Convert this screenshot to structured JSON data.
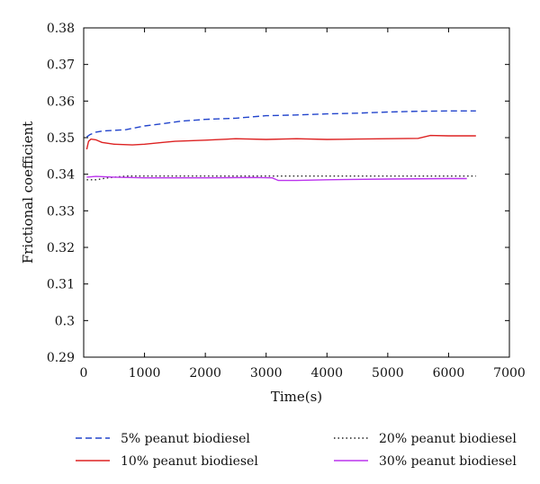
{
  "chart_data": {
    "type": "line",
    "title": "",
    "xlabel": "Time(s)",
    "ylabel": "Frictional coefficient",
    "xlim": [
      0,
      7000
    ],
    "ylim": [
      0.29,
      0.38
    ],
    "xticks": [
      0,
      1000,
      2000,
      3000,
      4000,
      5000,
      6000,
      7000
    ],
    "yticks": [
      0.29,
      0.3,
      0.31,
      0.32,
      0.33,
      0.34,
      0.35,
      0.36,
      0.37,
      0.38
    ],
    "ytick_labels": [
      "0.29",
      "0.3",
      "0.31",
      "0.32",
      "0.33",
      "0.34",
      "0.35",
      "0.36",
      "0.37",
      "0.38"
    ],
    "grid": false,
    "legend_position": "bottom",
    "series": [
      {
        "name": "5% peanut biodiesel",
        "color": "#2244cc",
        "dash": "dashed",
        "x": [
          50,
          100,
          200,
          300,
          500,
          700,
          1000,
          1300,
          1600,
          2000,
          2500,
          3000,
          3500,
          4000,
          4500,
          5000,
          5500,
          6000,
          6450
        ],
        "y": [
          0.3502,
          0.3508,
          0.3515,
          0.3518,
          0.352,
          0.3522,
          0.3532,
          0.3538,
          0.3545,
          0.355,
          0.3553,
          0.356,
          0.3562,
          0.3565,
          0.3567,
          0.357,
          0.3572,
          0.3573,
          0.3573
        ]
      },
      {
        "name": "10% peanut biodiesel",
        "color": "#dd2222",
        "dash": "solid",
        "x": [
          50,
          80,
          120,
          200,
          300,
          500,
          800,
          1000,
          1300,
          1500,
          2000,
          2500,
          3000,
          3500,
          4000,
          4500,
          5000,
          5500,
          5700,
          6000,
          6450
        ],
        "y": [
          0.3468,
          0.349,
          0.3496,
          0.3494,
          0.3487,
          0.3482,
          0.348,
          0.3482,
          0.3487,
          0.349,
          0.3493,
          0.3497,
          0.3495,
          0.3497,
          0.3495,
          0.3496,
          0.3497,
          0.3498,
          0.3506,
          0.3505,
          0.3505
        ]
      },
      {
        "name": "20% peanut biodiesel",
        "color": "#222222",
        "dash": "dotted",
        "x": [
          50,
          200,
          400,
          700,
          1000,
          2000,
          3000,
          4000,
          5000,
          6000,
          6450
        ],
        "y": [
          0.3385,
          0.3385,
          0.339,
          0.3395,
          0.3395,
          0.3395,
          0.3395,
          0.3395,
          0.3395,
          0.3395,
          0.3395
        ]
      },
      {
        "name": "30% peanut biodiesel",
        "color": "#bb33ee",
        "dash": "solid",
        "x": [
          50,
          200,
          500,
          1000,
          2000,
          2800,
          3100,
          3200,
          3500,
          4000,
          5000,
          6000,
          6300
        ],
        "y": [
          0.3392,
          0.3394,
          0.3392,
          0.339,
          0.339,
          0.3391,
          0.339,
          0.3383,
          0.3383,
          0.3385,
          0.3387,
          0.3388,
          0.3388
        ]
      }
    ]
  }
}
